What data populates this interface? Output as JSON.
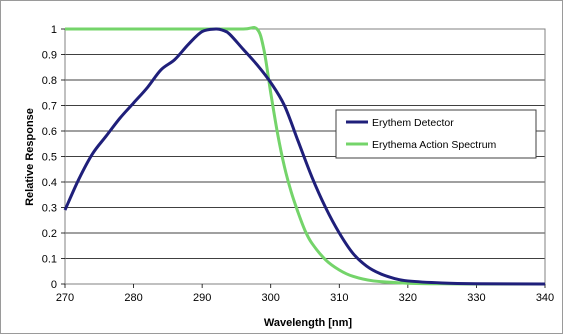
{
  "chart_data": {
    "type": "line",
    "xlabel": "Wavelength [nm]",
    "ylabel": "Relative Response",
    "xlim": [
      270,
      340
    ],
    "ylim": [
      0,
      1
    ],
    "x_ticks": [
      "270",
      "280",
      "290",
      "300",
      "310",
      "320",
      "330",
      "340"
    ],
    "y_ticks": [
      "0",
      "0.1",
      "0.2",
      "0.3",
      "0.4",
      "0.5",
      "0.6",
      "0.7",
      "0.8",
      "0.9",
      "1"
    ],
    "grid": "horizontal",
    "legend_position": "right",
    "series": [
      {
        "name": "Erythem Detector",
        "color": "#1f1f7a",
        "points": [
          [
            270,
            0.29
          ],
          [
            272,
            0.41
          ],
          [
            274,
            0.51
          ],
          [
            276,
            0.58
          ],
          [
            278,
            0.65
          ],
          [
            280,
            0.71
          ],
          [
            282,
            0.77
          ],
          [
            284,
            0.84
          ],
          [
            286,
            0.88
          ],
          [
            288,
            0.94
          ],
          [
            290,
            0.99
          ],
          [
            292,
            1.0
          ],
          [
            293,
            0.995
          ],
          [
            294,
            0.98
          ],
          [
            296,
            0.92
          ],
          [
            298,
            0.86
          ],
          [
            300,
            0.79
          ],
          [
            302,
            0.7
          ],
          [
            304,
            0.56
          ],
          [
            306,
            0.42
          ],
          [
            308,
            0.3
          ],
          [
            310,
            0.2
          ],
          [
            312,
            0.12
          ],
          [
            314,
            0.07
          ],
          [
            316,
            0.04
          ],
          [
            318,
            0.022
          ],
          [
            320,
            0.012
          ],
          [
            325,
            0.004
          ],
          [
            330,
            0.001
          ],
          [
            340,
            0.0
          ]
        ]
      },
      {
        "name": "Erythema Action Spectrum",
        "color": "#74d46a",
        "points": [
          [
            270,
            1.0
          ],
          [
            280,
            1.0
          ],
          [
            290,
            1.0
          ],
          [
            296,
            1.0
          ],
          [
            298,
            1.0
          ],
          [
            299,
            0.92
          ],
          [
            300,
            0.75
          ],
          [
            301,
            0.59
          ],
          [
            302,
            0.46
          ],
          [
            303,
            0.36
          ],
          [
            304,
            0.28
          ],
          [
            305,
            0.21
          ],
          [
            306,
            0.16
          ],
          [
            308,
            0.095
          ],
          [
            310,
            0.055
          ],
          [
            312,
            0.03
          ],
          [
            315,
            0.012
          ],
          [
            320,
            0.003
          ],
          [
            325,
            0.0008
          ],
          [
            330,
            0.0002
          ],
          [
            340,
            0.0
          ]
        ]
      }
    ]
  }
}
